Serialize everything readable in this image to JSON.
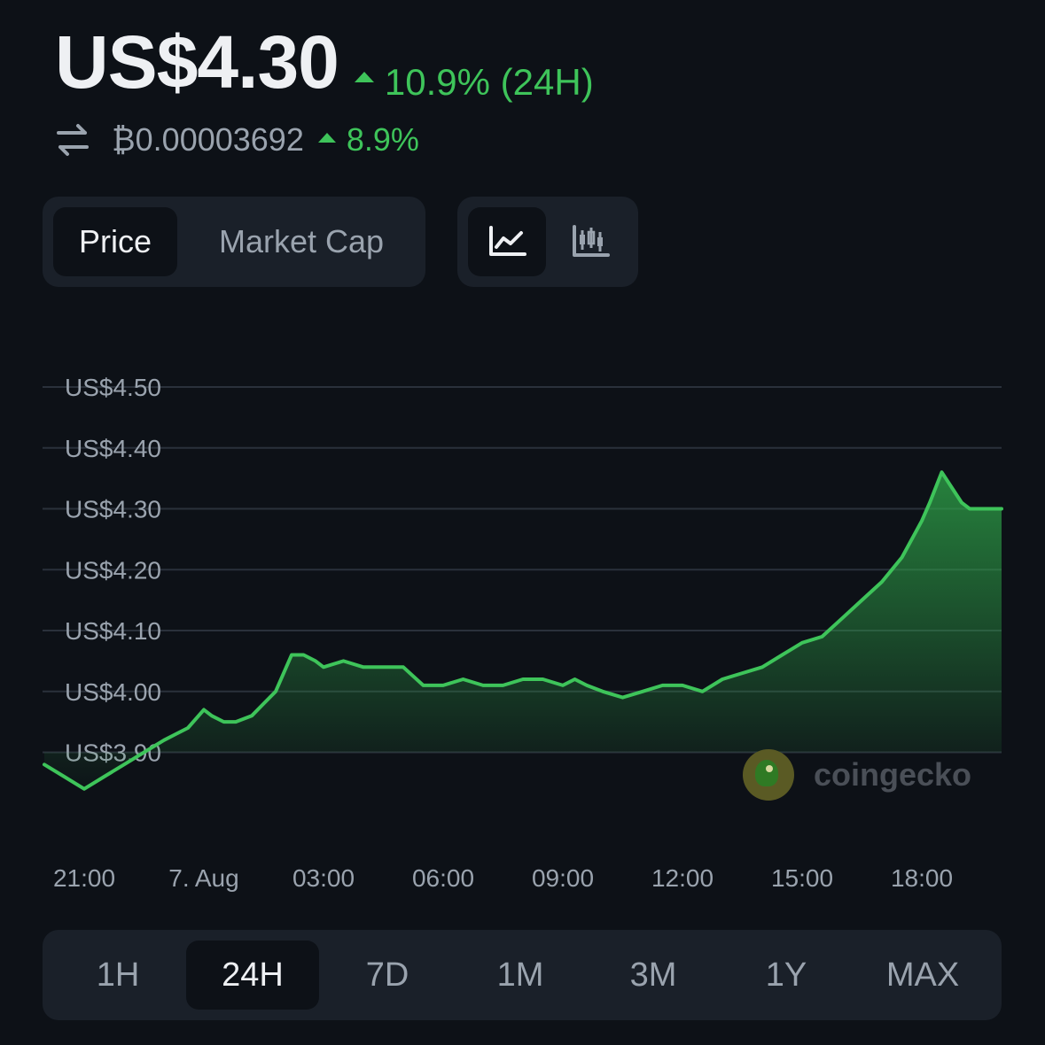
{
  "header": {
    "price": "US$4.30",
    "change_24h": "10.9% (24H)",
    "btc_price": "₿0.00003692",
    "btc_change": "8.9%"
  },
  "tabs": {
    "price": "Price",
    "market_cap": "Market Cap"
  },
  "chart_toggle": {
    "line_icon": "line-chart-icon",
    "candle_icon": "candlestick-chart-icon"
  },
  "ranges": [
    "1H",
    "24H",
    "7D",
    "1M",
    "3M",
    "1Y",
    "MAX"
  ],
  "active_range": "24H",
  "watermark": "coingecko",
  "colors": {
    "background": "#0d1117",
    "panel": "#1a2029",
    "up": "#3ec45a",
    "muted": "#9aa3ae"
  },
  "chart_data": {
    "type": "area",
    "y_tick_labels": [
      "US$4.50",
      "US$4.40",
      "US$4.30",
      "US$4.20",
      "US$4.10",
      "US$4.00",
      "US$3.90"
    ],
    "y_ticks": [
      4.5,
      4.4,
      4.3,
      4.2,
      4.1,
      4.0,
      3.9
    ],
    "x_tick_labels": [
      "21:00",
      "7. Aug",
      "03:00",
      "06:00",
      "09:00",
      "12:00",
      "15:00",
      "18:00"
    ],
    "x_ticks": [
      21,
      24,
      27,
      30,
      33,
      36,
      39,
      42
    ],
    "x": [
      20,
      20.5,
      21,
      21.5,
      22,
      22.5,
      23,
      23.3,
      23.6,
      24,
      24.2,
      24.5,
      24.8,
      25.2,
      25.5,
      25.8,
      26.2,
      26.5,
      26.8,
      27,
      27.5,
      28,
      28.5,
      29,
      29.5,
      30,
      30.5,
      31,
      31.5,
      32,
      32.5,
      33,
      33.3,
      33.6,
      34,
      34.5,
      35,
      35.5,
      36,
      36.5,
      37,
      37.5,
      38,
      38.5,
      39,
      39.5,
      40,
      40.5,
      41,
      41.5,
      42,
      42.2,
      42.5,
      42.8,
      43,
      43.2,
      43.5,
      44
    ],
    "series": [
      {
        "values": [
          3.88,
          3.86,
          3.84,
          3.86,
          3.88,
          3.9,
          3.92,
          3.93,
          3.94,
          3.97,
          3.96,
          3.95,
          3.95,
          3.96,
          3.98,
          4.0,
          4.06,
          4.06,
          4.05,
          4.04,
          4.05,
          4.04,
          4.04,
          4.04,
          4.01,
          4.01,
          4.02,
          4.01,
          4.01,
          4.02,
          4.02,
          4.01,
          4.02,
          4.01,
          4.0,
          3.99,
          4.0,
          4.01,
          4.01,
          4.0,
          4.02,
          4.03,
          4.04,
          4.06,
          4.08,
          4.09,
          4.12,
          4.15,
          4.18,
          4.22,
          4.28,
          4.31,
          4.36,
          4.33,
          4.31,
          4.3,
          4.3,
          4.3
        ]
      }
    ],
    "ylim": [
      3.85,
      4.55
    ],
    "grid": true,
    "legend": "none"
  }
}
